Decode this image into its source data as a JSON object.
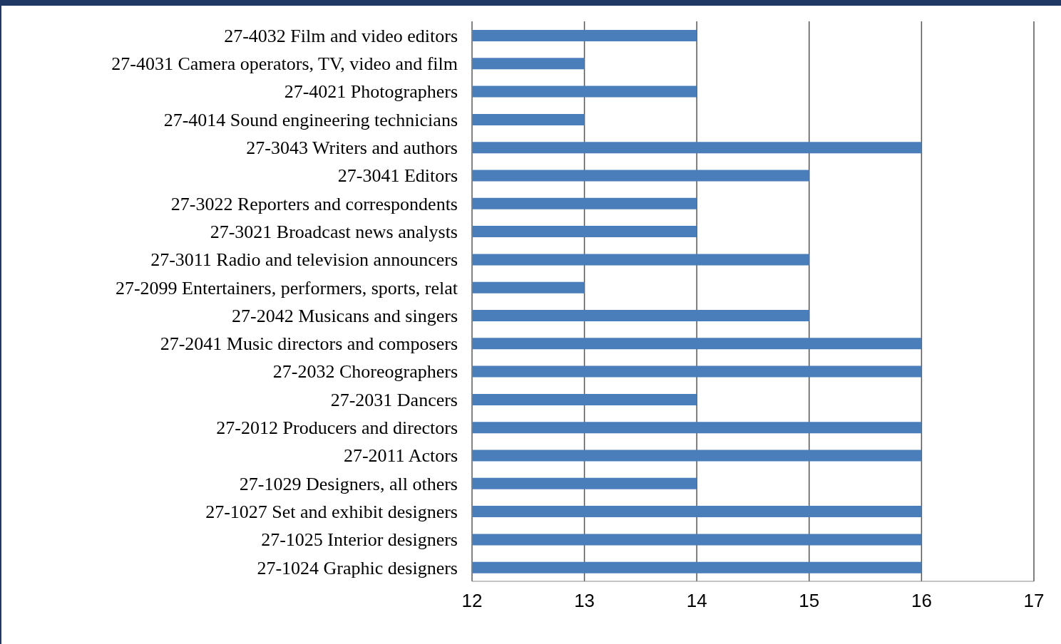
{
  "chart_data": {
    "type": "bar",
    "orientation": "horizontal",
    "categories": [
      "27-4032 Film and video editors",
      "27-4031 Camera operators, TV, video and film",
      "27-4021 Photographers",
      "27-4014 Sound engineering technicians",
      "27-3043 Writers and authors",
      "27-3041 Editors",
      "27-3022 Reporters and correspondents",
      "27-3021 Broadcast news analysts",
      "27-3011 Radio and television announcers",
      "27-2099 Entertainers, performers, sports, relat",
      "27-2042 Musicans and singers",
      "27-2041 Music directors and composers",
      "27-2032 Choreographers",
      "27-2031 Dancers",
      "27-2012 Producers and directors",
      "27-2011 Actors",
      "27-1029 Designers, all others",
      "27-1027 Set and exhibit designers",
      "27-1025 Interior designers",
      "27-1024 Graphic designers"
    ],
    "values": [
      14,
      13,
      14,
      13,
      16,
      15,
      14,
      14,
      15,
      13,
      15,
      16,
      16,
      14,
      16,
      16,
      14,
      16,
      16,
      16
    ],
    "color": "#4a7ebb",
    "xlim": [
      12,
      17
    ],
    "xticks": [
      12,
      13,
      14,
      15,
      16,
      17
    ],
    "grid": "x"
  }
}
